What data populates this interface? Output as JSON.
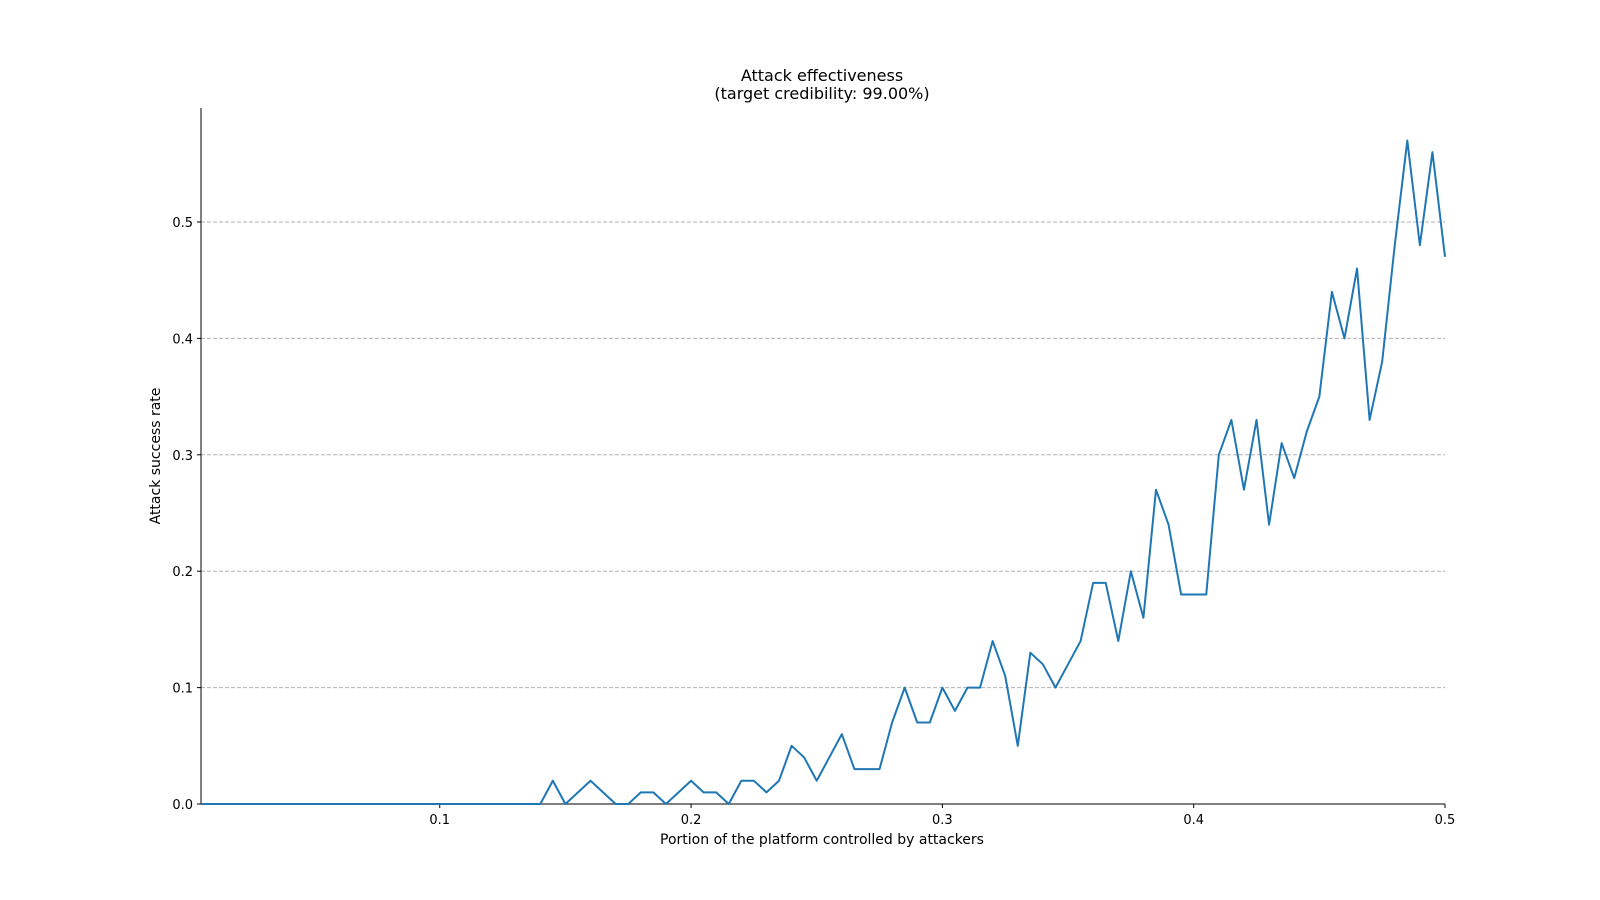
{
  "chart_data": {
    "type": "line",
    "title": "Attack effectiveness",
    "subtitle": "(target credibility: 99.00%)",
    "xlabel": "Portion of the platform controlled by attackers",
    "ylabel": "Attack success rate",
    "xlim": [
      0.005,
      0.5
    ],
    "ylim": [
      0.0,
      0.6
    ],
    "xticks": [
      "0.1",
      "0.2",
      "0.3",
      "0.4",
      "0.5"
    ],
    "yticks": [
      "0.0",
      "0.1",
      "0.2",
      "0.3",
      "0.4",
      "0.5"
    ],
    "grid": "horizontal-dashed",
    "line_color": "#1f77b4",
    "series": [
      {
        "x": [
          0.005,
          0.01,
          0.015,
          0.02,
          0.025,
          0.03,
          0.035,
          0.04,
          0.045,
          0.05,
          0.055,
          0.06,
          0.065,
          0.07,
          0.075,
          0.08,
          0.085,
          0.09,
          0.095,
          0.1,
          0.105,
          0.11,
          0.115,
          0.12,
          0.125,
          0.13,
          0.135,
          0.14,
          0.145,
          0.15,
          0.155,
          0.16,
          0.165,
          0.17,
          0.175,
          0.18,
          0.185,
          0.19,
          0.195,
          0.2,
          0.205,
          0.21,
          0.215,
          0.22,
          0.225,
          0.23,
          0.235,
          0.24,
          0.245,
          0.25,
          0.255,
          0.26,
          0.265,
          0.27,
          0.275,
          0.28,
          0.285,
          0.29,
          0.295,
          0.3,
          0.305,
          0.31,
          0.315,
          0.32,
          0.325,
          0.33,
          0.335,
          0.34,
          0.345,
          0.35,
          0.355,
          0.36,
          0.365,
          0.37,
          0.375,
          0.38,
          0.385,
          0.39,
          0.395,
          0.4,
          0.405,
          0.41,
          0.415,
          0.42,
          0.425,
          0.43,
          0.435,
          0.44,
          0.445,
          0.45,
          0.455,
          0.46,
          0.465,
          0.47,
          0.475,
          0.48,
          0.485,
          0.49,
          0.495,
          0.5
        ],
        "values": [
          0,
          0,
          0,
          0,
          0,
          0,
          0,
          0,
          0,
          0,
          0,
          0,
          0,
          0,
          0,
          0,
          0,
          0,
          0,
          0,
          0,
          0,
          0,
          0,
          0,
          0,
          0,
          0,
          0.02,
          0,
          0.01,
          0.02,
          0.01,
          0,
          0,
          0.01,
          0.01,
          0,
          0.01,
          0.02,
          0.01,
          0.01,
          0,
          0.02,
          0.02,
          0.01,
          0.02,
          0.05,
          0.04,
          0.02,
          0.04,
          0.06,
          0.03,
          0.03,
          0.03,
          0.07,
          0.1,
          0.07,
          0.07,
          0.1,
          0.08,
          0.1,
          0.1,
          0.14,
          0.11,
          0.05,
          0.13,
          0.12,
          0.1,
          0.12,
          0.14,
          0.19,
          0.19,
          0.14,
          0.2,
          0.16,
          0.27,
          0.24,
          0.18,
          0.18,
          0.18,
          0.3,
          0.33,
          0.27,
          0.33,
          0.24,
          0.31,
          0.28,
          0.32,
          0.35,
          0.44,
          0.4,
          0.46,
          0.33,
          0.38,
          0.48,
          0.57,
          0.48,
          0.56,
          0.47
        ]
      }
    ]
  }
}
